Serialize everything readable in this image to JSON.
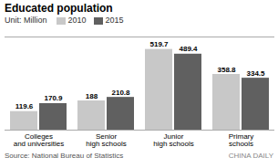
{
  "chart_data": {
    "type": "bar",
    "title": "Educated population",
    "subtitle": "Unit: Million",
    "annotations": [
      "Source: National Bureau of Statistics",
      "CHINA DAILY"
    ],
    "categories": [
      "Colleges\nand universities",
      "Senior\nhigh schools",
      "Junior\nhigh schools",
      "Primary\nschools"
    ],
    "series": [
      {
        "name": "2010",
        "color": "#c8c8c8",
        "values": [
          119.6,
          188.0,
          519.7,
          358.8
        ]
      },
      {
        "name": "2015",
        "color": "#606060",
        "values": [
          170.9,
          210.8,
          489.4,
          334.5
        ]
      }
    ],
    "ylim": [
      0,
      600
    ],
    "grid": false,
    "legend": "top-left",
    "data_labels": true,
    "tick_labels": "x"
  }
}
